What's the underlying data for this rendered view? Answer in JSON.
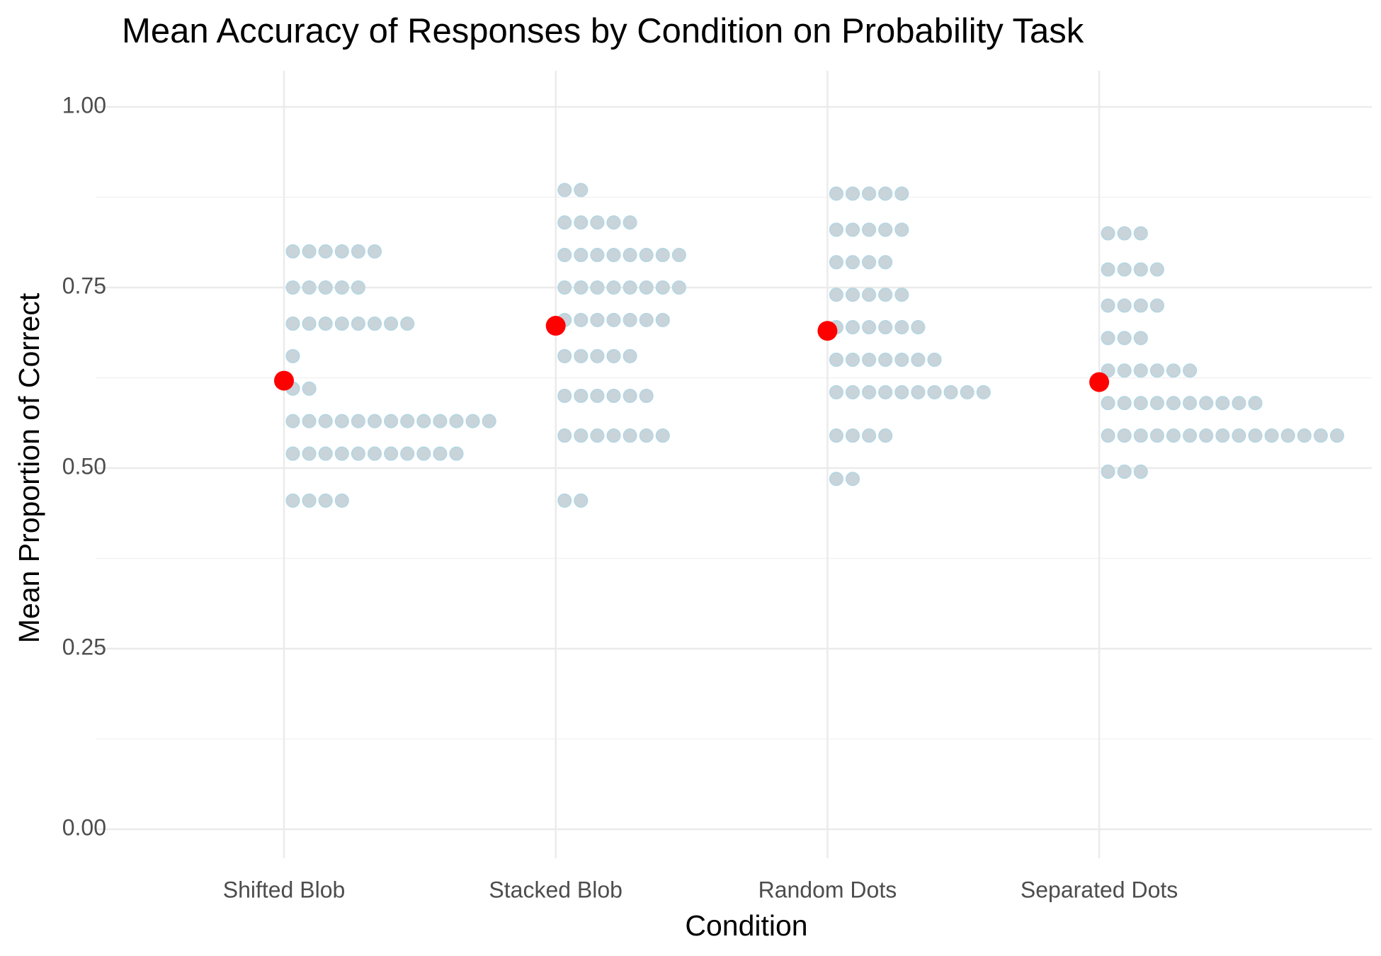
{
  "chart_data": {
    "type": "dotplot",
    "title": "Mean Accuracy of Responses by Condition on Probability Task",
    "x_label": "Condition",
    "y_label": "Mean Proportion of Correct",
    "categories": [
      "Shifted Blob",
      "Stacked Blob",
      "Random Dots",
      "Separated Dots"
    ],
    "observations": [
      [
        0.8,
        0.8,
        0.8,
        0.8,
        0.8,
        0.8,
        0.75,
        0.75,
        0.75,
        0.75,
        0.75,
        0.7,
        0.7,
        0.7,
        0.7,
        0.7,
        0.7,
        0.7,
        0.7,
        0.655,
        0.61,
        0.61,
        0.565,
        0.565,
        0.565,
        0.565,
        0.565,
        0.565,
        0.565,
        0.565,
        0.565,
        0.565,
        0.565,
        0.565,
        0.565,
        0.52,
        0.52,
        0.52,
        0.52,
        0.52,
        0.52,
        0.52,
        0.52,
        0.52,
        0.52,
        0.52,
        0.455,
        0.455,
        0.455,
        0.455
      ],
      [
        0.885,
        0.885,
        0.84,
        0.84,
        0.84,
        0.84,
        0.84,
        0.795,
        0.795,
        0.795,
        0.795,
        0.795,
        0.795,
        0.795,
        0.795,
        0.75,
        0.75,
        0.75,
        0.75,
        0.75,
        0.75,
        0.75,
        0.75,
        0.705,
        0.705,
        0.705,
        0.705,
        0.705,
        0.705,
        0.705,
        0.655,
        0.655,
        0.655,
        0.655,
        0.655,
        0.6,
        0.6,
        0.6,
        0.6,
        0.6,
        0.6,
        0.545,
        0.545,
        0.545,
        0.545,
        0.545,
        0.545,
        0.545,
        0.455,
        0.455
      ],
      [
        0.88,
        0.88,
        0.88,
        0.88,
        0.88,
        0.83,
        0.83,
        0.83,
        0.83,
        0.83,
        0.785,
        0.785,
        0.785,
        0.785,
        0.74,
        0.74,
        0.74,
        0.74,
        0.74,
        0.695,
        0.695,
        0.695,
        0.695,
        0.695,
        0.695,
        0.65,
        0.65,
        0.65,
        0.65,
        0.65,
        0.65,
        0.65,
        0.605,
        0.605,
        0.605,
        0.605,
        0.605,
        0.605,
        0.605,
        0.605,
        0.605,
        0.605,
        0.545,
        0.545,
        0.545,
        0.545,
        0.485,
        0.485
      ],
      [
        0.825,
        0.825,
        0.825,
        0.775,
        0.775,
        0.775,
        0.775,
        0.725,
        0.725,
        0.725,
        0.725,
        0.68,
        0.68,
        0.68,
        0.635,
        0.635,
        0.635,
        0.635,
        0.635,
        0.635,
        0.59,
        0.59,
        0.59,
        0.59,
        0.59,
        0.59,
        0.59,
        0.59,
        0.59,
        0.59,
        0.545,
        0.545,
        0.545,
        0.545,
        0.545,
        0.545,
        0.545,
        0.545,
        0.545,
        0.545,
        0.545,
        0.545,
        0.545,
        0.545,
        0.545,
        0.495,
        0.495,
        0.495
      ]
    ],
    "means": [
      0.621,
      0.697,
      0.69,
      0.619
    ],
    "dot_color": "#c8d3da",
    "dot_outline": "#b3d6e2",
    "mean_color": "#ff0000",
    "ylim": [
      0,
      1
    ],
    "yticks": [
      {
        "value": 0,
        "label": "0.00"
      },
      {
        "value": 0.25,
        "label": "0.25"
      },
      {
        "value": 0.5,
        "label": "0.50"
      },
      {
        "value": 0.75,
        "label": "0.75"
      },
      {
        "value": 1,
        "label": "1.00"
      }
    ],
    "y_minor_ticks": [
      0.125,
      0.375,
      0.625,
      0.875
    ],
    "grid": true
  }
}
